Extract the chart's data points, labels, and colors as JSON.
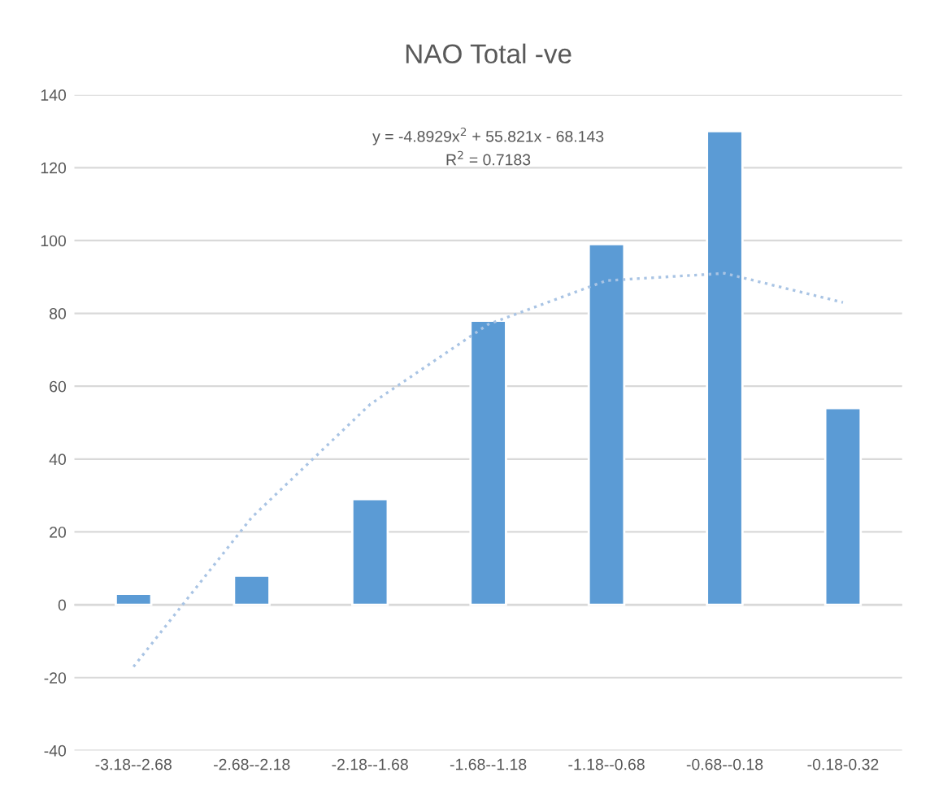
{
  "chart_data": {
    "type": "bar",
    "title": "NAO Total -ve",
    "categories": [
      "-3.18--2.68",
      "-2.68--2.18",
      "-2.18--1.68",
      "-1.68--1.18",
      "-1.18--0.68",
      "-0.68--0.18",
      "-0.18-0.32"
    ],
    "series": [
      {
        "color": "#5b9bd5",
        "values": [
          3,
          8,
          29,
          78,
          99,
          130,
          54
        ]
      },
      {
        "type": "line",
        "color": "#a9c4e4",
        "line_style": "dotted",
        "values": [
          -17,
          24,
          55,
          77,
          89,
          91,
          83
        ]
      }
    ],
    "annotations": [
      "y = -4.8929x$^{2}$ + 55.821x - 68.143",
      "R$^{2}$ = 0.7183"
    ],
    "ylim": [
      -40,
      140
    ],
    "yticks": [
      -40,
      -20,
      0,
      20,
      40,
      60,
      80,
      100,
      120,
      140
    ],
    "grid": "y",
    "legend": false
  }
}
